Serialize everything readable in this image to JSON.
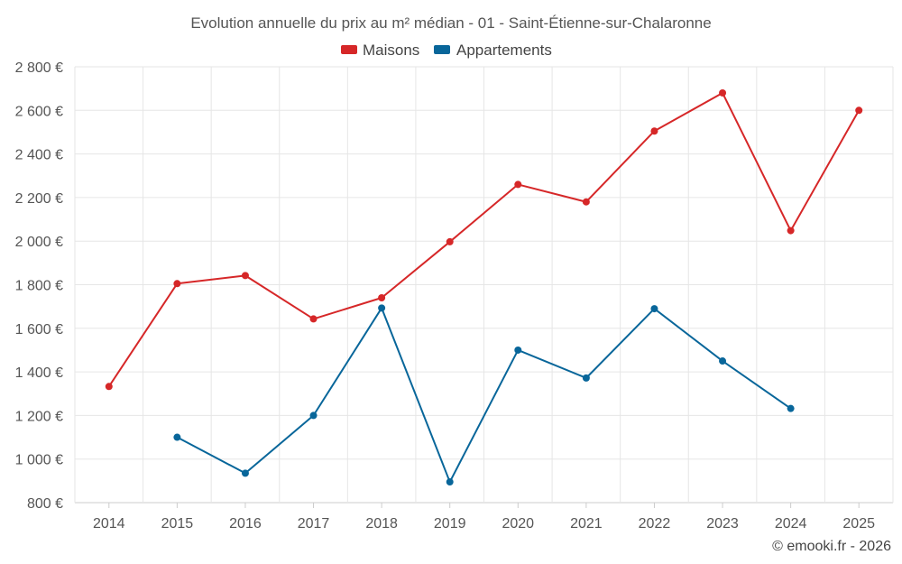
{
  "chart_data": {
    "type": "line",
    "title": "Evolution annuelle du prix au m² médian - 01 - Saint-Étienne-sur-Chalaronne",
    "categories": [
      "2014",
      "2015",
      "2016",
      "2017",
      "2018",
      "2019",
      "2020",
      "2021",
      "2022",
      "2023",
      "2024",
      "2025"
    ],
    "y_ticks": [
      "800 €",
      "1 000 €",
      "1 200 €",
      "1 400 €",
      "1 600 €",
      "1 800 €",
      "2 000 €",
      "2 200 €",
      "2 400 €",
      "2 600 €",
      "2 800 €"
    ],
    "ylim": [
      800,
      2800
    ],
    "grid": true,
    "legend_position": "top-center",
    "series": [
      {
        "name": "Maisons",
        "color": "#d62728",
        "values": [
          1333,
          1805,
          1842,
          1643,
          1740,
          1997,
          2260,
          2180,
          2505,
          2680,
          2048,
          2600
        ]
      },
      {
        "name": "Appartements",
        "color": "#08669a",
        "values": [
          null,
          1100,
          935,
          1200,
          1693,
          895,
          1500,
          1372,
          1690,
          1450,
          1232,
          null
        ]
      }
    ]
  },
  "credit": "© emooki.fr - 2026"
}
